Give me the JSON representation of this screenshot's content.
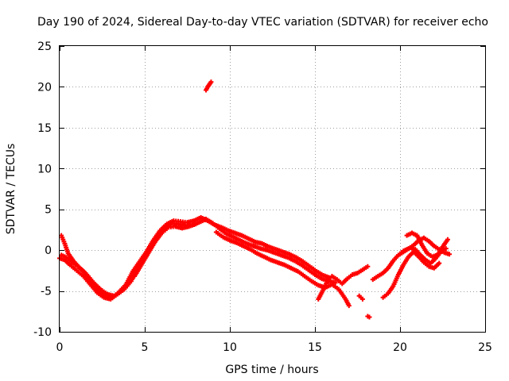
{
  "chart_data": {
    "type": "scatter",
    "title": "Day 190 of 2024, Sidereal Day-to-day VTEC variation (SDTVAR) for receiver echo",
    "xlabel": "GPS time / hours",
    "ylabel": "SDTVAR / TECUs",
    "xlim": [
      0,
      25
    ],
    "ylim": [
      -10,
      25
    ],
    "xticks": [
      0,
      5,
      10,
      15,
      20,
      25
    ],
    "yticks": [
      -10,
      -5,
      0,
      5,
      10,
      15,
      20,
      25
    ],
    "xtick_labels": [
      "0",
      "5",
      "10",
      "15",
      "20",
      "25"
    ],
    "ytick_labels": [
      "-10",
      "-5",
      "0",
      "5",
      "10",
      "15",
      "20",
      "25"
    ],
    "grid": true,
    "marker": "+",
    "color": "#ff0000",
    "series": [
      {
        "name": "track-a",
        "points": [
          [
            0,
            -1
          ],
          [
            0.3,
            -1.2
          ],
          [
            0.6,
            -1.8
          ],
          [
            1,
            -2.5
          ],
          [
            1.4,
            -3.2
          ],
          [
            1.8,
            -4.2
          ],
          [
            2.2,
            -5.2
          ],
          [
            2.6,
            -5.8
          ],
          [
            3,
            -6
          ],
          [
            3.4,
            -5.4
          ],
          [
            3.8,
            -4.8
          ],
          [
            4.2,
            -3.8
          ],
          [
            4.6,
            -2.2
          ],
          [
            5,
            -0.8
          ],
          [
            5.4,
            0.6
          ],
          [
            5.8,
            1.8
          ],
          [
            6.2,
            2.8
          ],
          [
            6.6,
            3.3
          ],
          [
            7,
            3.2
          ],
          [
            7.4,
            3
          ],
          [
            7.8,
            3.1
          ],
          [
            8.2,
            3.4
          ],
          [
            8.6,
            3.8
          ],
          [
            9,
            3.3
          ],
          [
            9.4,
            2.6
          ],
          [
            9.8,
            2
          ],
          [
            10.2,
            1.6
          ],
          [
            10.6,
            1.2
          ],
          [
            11,
            0.8
          ],
          [
            11.4,
            0.5
          ],
          [
            11.8,
            0.2
          ],
          [
            12.2,
            0
          ],
          [
            12.6,
            -0.3
          ],
          [
            13,
            -0.6
          ],
          [
            13.4,
            -0.9
          ],
          [
            13.8,
            -1.3
          ],
          [
            14.2,
            -1.8
          ],
          [
            14.6,
            -2.4
          ],
          [
            15,
            -3
          ],
          [
            15.4,
            -3.5
          ],
          [
            15.8,
            -3.8
          ],
          [
            16.2,
            -4
          ]
        ]
      },
      {
        "name": "track-b",
        "points": [
          [
            0.1,
            1.8
          ],
          [
            0.3,
            0.8
          ],
          [
            0.5,
            -0.4
          ],
          [
            0.8,
            -1.3
          ],
          [
            1.1,
            -2
          ],
          [
            1.5,
            -2.8
          ],
          [
            1.9,
            -3.9
          ],
          [
            2.3,
            -5
          ],
          [
            2.7,
            -5.6
          ],
          [
            3.1,
            -5.8
          ],
          [
            3.5,
            -5.1
          ],
          [
            3.9,
            -4.2
          ],
          [
            4.3,
            -2.6
          ],
          [
            4.7,
            -1.4
          ],
          [
            5.1,
            -0.2
          ],
          [
            5.5,
            1.2
          ],
          [
            5.9,
            2.4
          ],
          [
            6.3,
            3.2
          ],
          [
            6.7,
            3.6
          ],
          [
            7.1,
            3.5
          ],
          [
            7.5,
            3.4
          ],
          [
            7.9,
            3.6
          ],
          [
            8.3,
            4
          ],
          [
            8.7,
            3.6
          ],
          [
            9.1,
            3.1
          ],
          [
            9.5,
            2.8
          ],
          [
            9.9,
            2.4
          ],
          [
            10.3,
            2.1
          ],
          [
            10.7,
            1.8
          ],
          [
            11.1,
            1.4
          ],
          [
            11.5,
            1
          ],
          [
            11.9,
            0.8
          ],
          [
            12.3,
            0.4
          ],
          [
            12.7,
            0.1
          ],
          [
            13.1,
            -0.2
          ],
          [
            13.5,
            -0.5
          ],
          [
            13.9,
            -0.9
          ],
          [
            14.3,
            -1.4
          ],
          [
            14.7,
            -2
          ],
          [
            15.1,
            -2.6
          ],
          [
            15.5,
            -3.1
          ],
          [
            15.9,
            -3.4
          ]
        ]
      },
      {
        "name": "track-c",
        "points": [
          [
            9.2,
            2.2
          ],
          [
            9.6,
            1.6
          ],
          [
            10,
            1.2
          ],
          [
            10.4,
            0.9
          ],
          [
            10.8,
            0.5
          ],
          [
            11.2,
            0.1
          ],
          [
            11.6,
            -0.4
          ],
          [
            12,
            -0.8
          ],
          [
            12.4,
            -1.2
          ],
          [
            12.8,
            -1.5
          ],
          [
            13.2,
            -1.8
          ],
          [
            13.6,
            -2.2
          ],
          [
            14,
            -2.6
          ],
          [
            14.4,
            -3.2
          ],
          [
            14.8,
            -3.8
          ],
          [
            15.2,
            -4.3
          ],
          [
            15.6,
            -4.6
          ],
          [
            16,
            -4.2
          ],
          [
            16.4,
            -4.8
          ],
          [
            16.8,
            -6
          ],
          [
            17,
            -6.8
          ]
        ]
      },
      {
        "name": "track-d",
        "points": [
          [
            15.2,
            -6
          ],
          [
            15.4,
            -5.2
          ],
          [
            15.6,
            -4.3
          ],
          [
            15.8,
            -3.6
          ],
          [
            16,
            -3.2
          ],
          [
            16.3,
            -3.6
          ],
          [
            16.6,
            -4.1
          ],
          [
            16.9,
            -3.5
          ],
          [
            17.2,
            -3
          ],
          [
            17.5,
            -2.8
          ],
          [
            17.8,
            -2.4
          ],
          [
            18.1,
            -2
          ]
        ]
      },
      {
        "name": "track-e",
        "points": [
          [
            17.6,
            -5.6
          ],
          [
            17.8,
            -6
          ]
        ]
      },
      {
        "name": "track-f",
        "points": [
          [
            18.1,
            -8.1
          ],
          [
            18.2,
            -8.2
          ]
        ]
      },
      {
        "name": "track-g",
        "points": [
          [
            8.6,
            19.6
          ],
          [
            8.7,
            20
          ],
          [
            8.8,
            20.3
          ],
          [
            8.9,
            20.6
          ]
        ]
      },
      {
        "name": "track-h",
        "points": [
          [
            18.4,
            -3.6
          ],
          [
            18.7,
            -3.2
          ],
          [
            19,
            -2.8
          ],
          [
            19.3,
            -2.2
          ],
          [
            19.6,
            -1.3
          ],
          [
            19.9,
            -0.6
          ],
          [
            20.2,
            -0.1
          ],
          [
            20.5,
            0.2
          ],
          [
            20.8,
            0.6
          ],
          [
            21.1,
            1.2
          ],
          [
            21.4,
            1.5
          ],
          [
            21.7,
            1.1
          ],
          [
            22,
            0.5
          ],
          [
            22.3,
            0.1
          ],
          [
            22.6,
            -0.3
          ],
          [
            22.9,
            -0.5
          ]
        ]
      },
      {
        "name": "track-i",
        "points": [
          [
            19,
            -5.8
          ],
          [
            19.3,
            -5.3
          ],
          [
            19.6,
            -4.4
          ],
          [
            19.9,
            -3
          ],
          [
            20.2,
            -1.8
          ],
          [
            20.5,
            -0.8
          ],
          [
            20.8,
            -0.2
          ],
          [
            21.1,
            -0.8
          ],
          [
            21.4,
            -1.5
          ],
          [
            21.7,
            -2
          ],
          [
            22,
            -2.2
          ],
          [
            22.3,
            -1.6
          ]
        ]
      },
      {
        "name": "track-j",
        "points": [
          [
            20.4,
            1.8
          ],
          [
            20.7,
            2.1
          ],
          [
            21,
            1.8
          ],
          [
            21.3,
            0.6
          ],
          [
            21.6,
            -0.4
          ],
          [
            21.9,
            -0.8
          ],
          [
            22.2,
            -0.6
          ],
          [
            22.5,
            0.4
          ],
          [
            22.8,
            1.3
          ]
        ]
      },
      {
        "name": "track-k",
        "points": [
          [
            20,
            -0.5
          ],
          [
            20.3,
            -0.1
          ],
          [
            20.6,
            0.3
          ],
          [
            20.9,
            0.1
          ],
          [
            21.2,
            -0.6
          ],
          [
            21.5,
            -1.2
          ],
          [
            21.8,
            -1.6
          ],
          [
            22.1,
            -1
          ],
          [
            22.4,
            -0.2
          ],
          [
            22.7,
            0.2
          ]
        ]
      },
      {
        "name": "track-l",
        "points": [
          [
            0.1,
            -0.6
          ],
          [
            0.4,
            -0.9
          ],
          [
            0.7,
            -1.4
          ],
          [
            1,
            -1.9
          ],
          [
            1.3,
            -2.4
          ],
          [
            1.6,
            -3
          ],
          [
            2,
            -4
          ],
          [
            2.4,
            -4.8
          ],
          [
            2.8,
            -5.4
          ],
          [
            3.2,
            -5.6
          ]
        ]
      },
      {
        "name": "track-m",
        "points": [
          [
            4.4,
            -3.2
          ],
          [
            4.8,
            -1.8
          ],
          [
            5.2,
            -0.4
          ],
          [
            5.6,
            1
          ],
          [
            6,
            2.1
          ],
          [
            6.4,
            2.8
          ],
          [
            6.8,
            2.9
          ],
          [
            7.2,
            2.7
          ],
          [
            7.6,
            2.9
          ],
          [
            8,
            3.2
          ]
        ]
      }
    ]
  }
}
